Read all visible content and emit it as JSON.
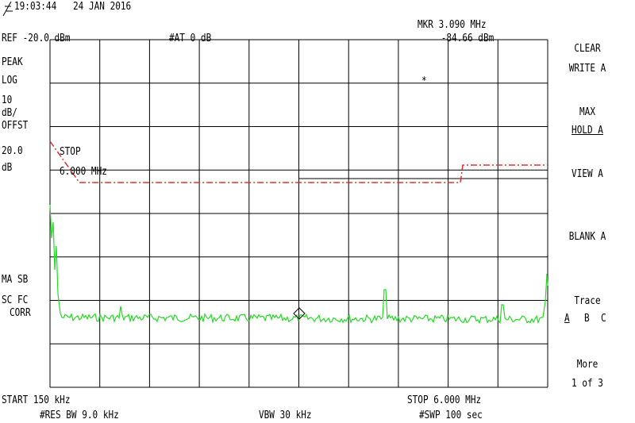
{
  "header": {
    "time": "19:03:44",
    "date": "24 JAN 2016",
    "reference": "REF -20.0 dBm",
    "attenuation": "#AT 0 dB",
    "marker_freq": "MKR 3.090 MHz",
    "marker_level": "-84.66 dBm"
  },
  "left_panel": {
    "detector": "PEAK",
    "scale": "LOG",
    "per_div_value": "10",
    "per_div_unit": "dB/",
    "offset_label": "OFFST",
    "offset_value": "20.0",
    "offset_unit": "dB",
    "status": [
      "MA SB",
      "SC FC",
      "CORR"
    ]
  },
  "display": {
    "stop_label": "STOP",
    "stop_value": "6.000 MHz",
    "marker_symbol": "*"
  },
  "softkeys": {
    "clear_write": [
      "CLEAR",
      "WRITE A"
    ],
    "max_hold": [
      "MAX",
      "HOLD A"
    ],
    "view": "VIEW A",
    "blank": "BLANK A",
    "trace_label": "Trace",
    "traces": [
      "A",
      "B",
      "C"
    ],
    "more": "More",
    "page": "1 of 3"
  },
  "footer": {
    "start": "START 150 kHz",
    "stop": "STOP 6.000 MHz",
    "rbw": "#RES BW 9.0 kHz",
    "vbw": "VBW 30 kHz",
    "sweep": "#SWP 100 sec"
  }
}
